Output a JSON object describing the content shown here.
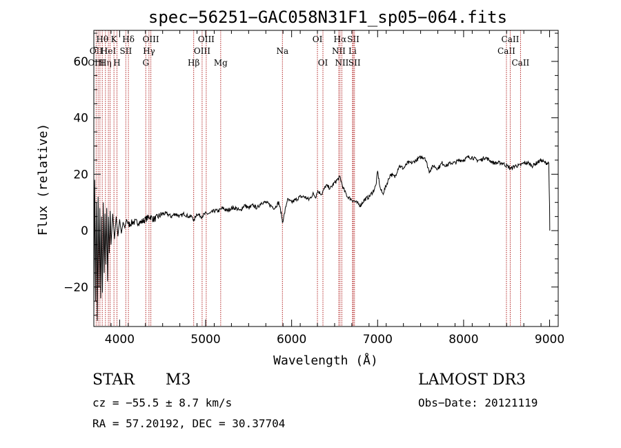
{
  "chart_data": {
    "type": "line",
    "title": "spec−56251−GAC058N31F1_sp05−064.fits",
    "xlabel": "Wavelength (Å)",
    "ylabel": "Flux (relative)",
    "xlim": [
      3700,
      9100
    ],
    "ylim": [
      -34,
      71
    ],
    "xticks": [
      4000,
      5000,
      6000,
      7000,
      8000,
      9000
    ],
    "yticks": [
      -20,
      0,
      20,
      40,
      60
    ],
    "ytick_labels": [
      "−20",
      "0",
      "20",
      "40",
      "60"
    ],
    "line_color": "#000000",
    "marker_color": "#b22222",
    "series": [
      {
        "name": "flux",
        "x": [
          3700,
          3710,
          3720,
          3730,
          3740,
          3750,
          3760,
          3770,
          3780,
          3790,
          3800,
          3810,
          3820,
          3830,
          3840,
          3850,
          3860,
          3870,
          3880,
          3890,
          3900,
          3920,
          3940,
          3960,
          3980,
          4000,
          4020,
          4040,
          4060,
          4080,
          4100,
          4150,
          4200,
          4250,
          4300,
          4350,
          4400,
          4450,
          4500,
          4550,
          4600,
          4650,
          4700,
          4750,
          4800,
          4850,
          4861,
          4880,
          4900,
          4950,
          5000,
          5050,
          5100,
          5150,
          5200,
          5250,
          5300,
          5350,
          5400,
          5450,
          5500,
          5550,
          5600,
          5650,
          5700,
          5750,
          5800,
          5850,
          5880,
          5893,
          5910,
          5950,
          6000,
          6050,
          6100,
          6150,
          6200,
          6250,
          6280,
          6300,
          6350,
          6400,
          6450,
          6500,
          6530,
          6563,
          6600,
          6650,
          6700,
          6750,
          6800,
          6850,
          6900,
          6950,
          6980,
          7000,
          7030,
          7060,
          7100,
          7150,
          7200,
          7250,
          7300,
          7350,
          7400,
          7450,
          7500,
          7550,
          7600,
          7650,
          7700,
          7750,
          7800,
          7850,
          7900,
          7950,
          8000,
          8050,
          8100,
          8150,
          8200,
          8250,
          8300,
          8350,
          8400,
          8450,
          8500,
          8550,
          8600,
          8650,
          8700,
          8750,
          8800,
          8850,
          8900,
          8950,
          8990,
          9000,
          9002
        ],
        "y": [
          -30,
          18,
          -25,
          10,
          -32,
          12,
          -20,
          8,
          -24,
          5,
          -22,
          10,
          -15,
          6,
          -12,
          8,
          -18,
          5,
          -8,
          7,
          -5,
          6,
          -3,
          5,
          -2,
          4,
          -1,
          3,
          1,
          4,
          2,
          3,
          3,
          3,
          4,
          5,
          4,
          5,
          6,
          6,
          5,
          6,
          5,
          6,
          5,
          5,
          3,
          5,
          6,
          5,
          6,
          6,
          7,
          7,
          8,
          7,
          8,
          8,
          7,
          9,
          8,
          9,
          8,
          10,
          10,
          9,
          8,
          10,
          6,
          3,
          5,
          11,
          10,
          11,
          12,
          12,
          11,
          13,
          12,
          14,
          13,
          16,
          15,
          17,
          18,
          19,
          15,
          12,
          11,
          10,
          9,
          11,
          12,
          14,
          16,
          21,
          15,
          13,
          16,
          20,
          19,
          23,
          22,
          24,
          24,
          25,
          26,
          26,
          21,
          23,
          22,
          24,
          23,
          24,
          24,
          25,
          25,
          26,
          26,
          25,
          25,
          26,
          25,
          24,
          24,
          24,
          23,
          22,
          23,
          23,
          24,
          24,
          23,
          24,
          25,
          24,
          24,
          8,
          0
        ]
      }
    ],
    "markers": [
      {
        "wl": 3727,
        "row1": "",
        "row2": "OII",
        "row3": "OIII"
      },
      {
        "wl": 3750,
        "row1": "",
        "row2": "",
        "row3": ""
      },
      {
        "wl": 3771,
        "row1": "",
        "row2": "",
        "row3": ""
      },
      {
        "wl": 3798,
        "row1": "Hθ",
        "row2": "",
        "row3": ""
      },
      {
        "wl": 3835,
        "row1": "",
        "row2": "",
        "row3": "Hη"
      },
      {
        "wl": 3869,
        "row1": "",
        "row2": "HeI",
        "row3": ""
      },
      {
        "wl": 3889,
        "row1": "",
        "row2": "",
        "row3": ""
      },
      {
        "wl": 3934,
        "row1": "K",
        "row2": "",
        "row3": ""
      },
      {
        "wl": 3969,
        "row1": "",
        "row2": "",
        "row3": "H"
      },
      {
        "wl": 4072,
        "row1": "",
        "row2": "SII",
        "row3": ""
      },
      {
        "wl": 4102,
        "row1": "Hδ",
        "row2": "",
        "row3": ""
      },
      {
        "wl": 4304,
        "row1": "",
        "row2": "",
        "row3": "G"
      },
      {
        "wl": 4341,
        "row1": "",
        "row2": "Hγ",
        "row3": ""
      },
      {
        "wl": 4363,
        "row1": "OIII",
        "row2": "",
        "row3": ""
      },
      {
        "wl": 4861,
        "row1": "",
        "row2": "",
        "row3": "Hβ"
      },
      {
        "wl": 4959,
        "row1": "",
        "row2": "OIII",
        "row3": ""
      },
      {
        "wl": 5007,
        "row1": "OIII",
        "row2": "",
        "row3": ""
      },
      {
        "wl": 5175,
        "row1": "",
        "row2": "",
        "row3": "Mg"
      },
      {
        "wl": 5893,
        "row1": "",
        "row2": "Na",
        "row3": ""
      },
      {
        "wl": 6300,
        "row1": "OI",
        "row2": "",
        "row3": ""
      },
      {
        "wl": 6364,
        "row1": "",
        "row2": "",
        "row3": "OI"
      },
      {
        "wl": 6548,
        "row1": "",
        "row2": "NII",
        "row3": ""
      },
      {
        "wl": 6563,
        "row1": "Hα",
        "row2": "",
        "row3": ""
      },
      {
        "wl": 6584,
        "row1": "",
        "row2": "",
        "row3": "NII"
      },
      {
        "wl": 6708,
        "row1": "",
        "row2": "Li",
        "row3": ""
      },
      {
        "wl": 6717,
        "row1": "SII",
        "row2": "",
        "row3": ""
      },
      {
        "wl": 6731,
        "row1": "",
        "row2": "",
        "row3": "SII"
      },
      {
        "wl": 8498,
        "row1": "",
        "row2": "CaII",
        "row3": ""
      },
      {
        "wl": 8542,
        "row1": "CaII",
        "row2": "",
        "row3": ""
      },
      {
        "wl": 8662,
        "row1": "",
        "row2": "",
        "row3": "CaII"
      }
    ]
  },
  "info": {
    "class_label": "STAR",
    "subclass": "M3",
    "survey": "LAMOST DR3",
    "redshift": "cz = −55.5 ± 8.7 km/s",
    "obs_date": "Obs−Date: 20121119",
    "coords": "RA =  57.20192, DEC =  30.37704"
  }
}
